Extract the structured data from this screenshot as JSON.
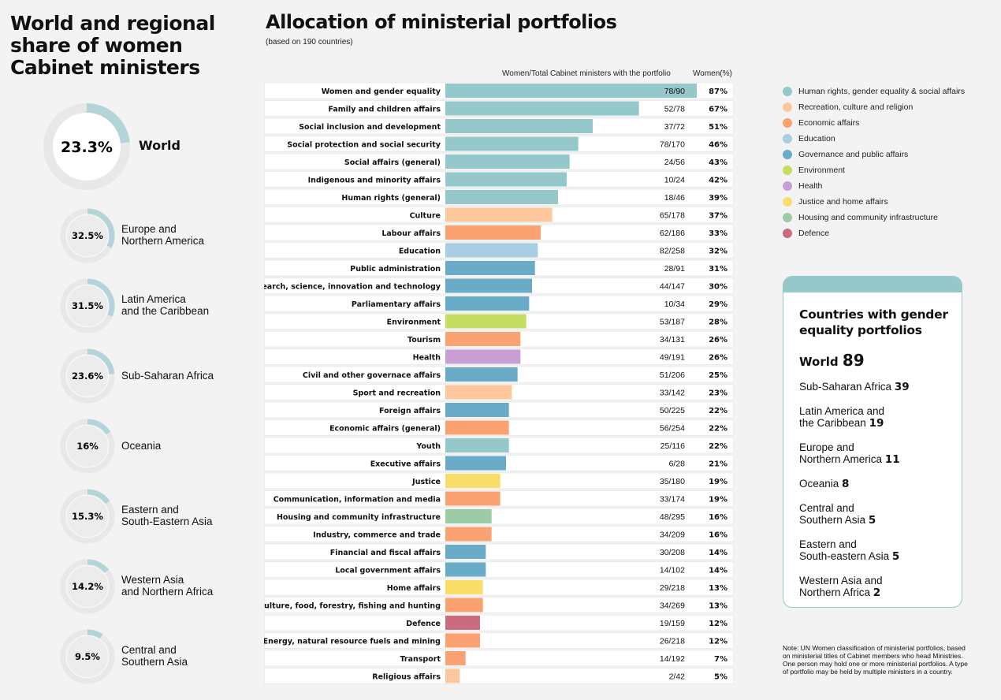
{
  "left_panel": {
    "title": "World and regional share of women Cabinet ministers",
    "world": {
      "label": "World",
      "value_text": "23.3%",
      "value": 23.3
    },
    "regions": [
      {
        "label": "Europe and\nNorthern America",
        "value_text": "32.5%",
        "value": 32.5
      },
      {
        "label": "Latin America\nand the Caribbean",
        "value_text": "31.5%",
        "value": 31.5
      },
      {
        "label": "Sub-Saharan Africa",
        "value_text": "23.6%",
        "value": 23.6
      },
      {
        "label": "Oceania",
        "value_text": "16%",
        "value": 16
      },
      {
        "label": "Eastern and\nSouth-Eastern Asia",
        "value_text": "15.3%",
        "value": 15.3
      },
      {
        "label": "Western Asia\nand Northern Africa",
        "value_text": "14.2%",
        "value": 14.2
      },
      {
        "label": "Central and\nSouthern Asia",
        "value_text": "9.5%",
        "value": 9.5
      }
    ],
    "ring_color": "#b3d5da",
    "ring_track": "#e8e8e8"
  },
  "main": {
    "title": "Allocation of ministerial portfolios",
    "subtitle": "(based on 190 countries)",
    "col_ratio_header": "Women/Total Cabinet ministers with the portfolio",
    "col_pct_header": "Women(%)"
  },
  "chart_data": {
    "type": "bar",
    "orientation": "horizontal",
    "xlim": [
      0,
      100
    ],
    "categories": [
      "Women and gender equality",
      "Family and children affairs",
      "Social inclusion and development",
      "Social protection and social security",
      "Social affairs (general)",
      "Indigenous and minority affairs",
      "Human rights (general)",
      "Culture",
      "Labour affairs",
      "Education",
      "Public administration",
      "Research, science, innovation and technology",
      "Parliamentary affairs",
      "Environment",
      "Tourism",
      "Health",
      "Civil and other governace affairs",
      "Sport and recreation",
      "Foreign affairs",
      "Economic affairs (general)",
      "Youth",
      "Executive affairs",
      "Justice",
      "Communication, information and media",
      "Housing and community infrastructure",
      "Industry, commerce and trade",
      "Financial and fiscal affairs",
      "Local government affairs",
      "Home affairs",
      "Agriculture, food, forestry, fishing and hunting",
      "Defence",
      "Energy, natural resource fuels and mining",
      "Transport",
      "Religious affairs"
    ],
    "values": [
      87,
      67,
      51,
      46,
      43,
      42,
      39,
      37,
      33,
      32,
      31,
      30,
      29,
      28,
      26,
      26,
      25,
      23,
      22,
      22,
      22,
      21,
      19,
      19,
      16,
      16,
      14,
      14,
      13,
      13,
      12,
      12,
      7,
      5
    ],
    "value_labels": [
      "87%",
      "67%",
      "51%",
      "46%",
      "43%",
      "42%",
      "39%",
      "37%",
      "33%",
      "32%",
      "31%",
      "30%",
      "29%",
      "28%",
      "26%",
      "26%",
      "25%",
      "23%",
      "22%",
      "22%",
      "22%",
      "21%",
      "19%",
      "19%",
      "16%",
      "16%",
      "14%",
      "14%",
      "13%",
      "13%",
      "12%",
      "12%",
      "7%",
      "5%"
    ],
    "ratios": [
      "78/90",
      "52/78",
      "37/72",
      "78/170",
      "24/56",
      "10/24",
      "18/46",
      "65/178",
      "62/186",
      "82/258",
      "28/91",
      "44/147",
      "10/34",
      "53/187",
      "34/131",
      "49/191",
      "51/206",
      "33/142",
      "50/225",
      "56/254",
      "25/116",
      "6/28",
      "35/180",
      "33/174",
      "48/295",
      "34/209",
      "30/208",
      "14/102",
      "29/218",
      "34/269",
      "19/159",
      "26/218",
      "14/192",
      "2/42"
    ],
    "groups": [
      "hr",
      "hr",
      "hr",
      "hr",
      "hr",
      "hr",
      "hr",
      "rec",
      "eco",
      "edu",
      "gov",
      "gov",
      "gov",
      "env",
      "eco",
      "hea",
      "gov",
      "rec",
      "gov",
      "eco",
      "hr",
      "gov",
      "jus",
      "eco",
      "hou",
      "eco",
      "gov",
      "gov",
      "jus",
      "eco",
      "def",
      "eco",
      "eco",
      "rec"
    ],
    "legend": [
      {
        "key": "hr",
        "label": "Human rights, gender equality & social affairs",
        "color": "#95c8cb"
      },
      {
        "key": "rec",
        "label": "Recreation, culture and religion",
        "color": "#fcc89b"
      },
      {
        "key": "eco",
        "label": "Economic affairs",
        "color": "#fba272"
      },
      {
        "key": "edu",
        "label": "Education",
        "color": "#a9cde3"
      },
      {
        "key": "gov",
        "label": "Governance and public affairs",
        "color": "#6aabc8"
      },
      {
        "key": "env",
        "label": "Environment",
        "color": "#c5dd63"
      },
      {
        "key": "hea",
        "label": "Health",
        "color": "#c99ed5"
      },
      {
        "key": "jus",
        "label": "Justice and home affairs",
        "color": "#f8de68"
      },
      {
        "key": "hou",
        "label": "Housing and community infrastructure",
        "color": "#9dcba5"
      },
      {
        "key": "def",
        "label": "Defence",
        "color": "#cc6a80"
      }
    ]
  },
  "gender_portfolios": {
    "title": "Countries with gender equality portfolios",
    "world_label": "World",
    "world_value": "89",
    "items": [
      {
        "label": "Sub-Saharan Africa",
        "value": "39"
      },
      {
        "label": "Latin America and\nthe Caribbean",
        "value": "19"
      },
      {
        "label": "Europe and\nNorthern America",
        "value": "11"
      },
      {
        "label": "Oceania",
        "value": "8"
      },
      {
        "label": "Central and\nSouthern Asia",
        "value": "5"
      },
      {
        "label": "Eastern and\nSouth-eastern Asia",
        "value": "5"
      },
      {
        "label": "Western Asia and\nNorthern Africa",
        "value": "2"
      }
    ],
    "accent": "#95c8cb"
  },
  "note": "Note: UN Women classification of ministerial portfolios, based on ministerial titles of Cabinet members who head Ministries. One person may hold one or more ministerial portfolios. A type of portfolio may be held by multiple ministers in a country."
}
